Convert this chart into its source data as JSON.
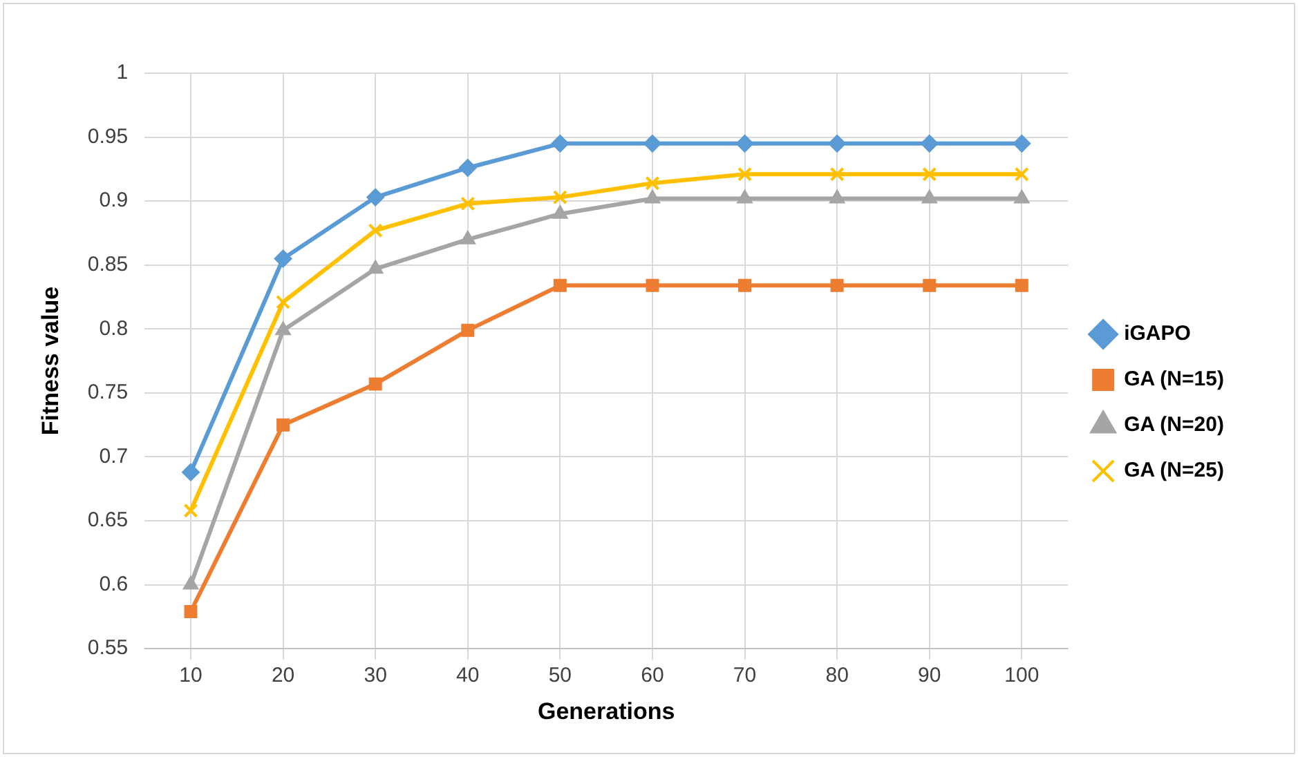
{
  "chart_data": {
    "type": "line",
    "xlabel": "Generations",
    "ylabel": "Fitness value",
    "categories": [
      "10",
      "20",
      "30",
      "40",
      "50",
      "60",
      "70",
      "80",
      "90",
      "100"
    ],
    "series": [
      {
        "name": "iGAPO",
        "color": "#5b9bd5",
        "marker": "diamond",
        "values": [
          0.688,
          0.855,
          0.903,
          0.926,
          0.945,
          0.945,
          0.945,
          0.945,
          0.945,
          0.945
        ]
      },
      {
        "name": "GA (N=15)",
        "color": "#ed7d31",
        "marker": "square",
        "values": [
          0.579,
          0.725,
          0.757,
          0.799,
          0.834,
          0.834,
          0.834,
          0.834,
          0.834,
          0.834
        ]
      },
      {
        "name": "GA (N=20)",
        "color": "#a5a5a5",
        "marker": "triangle",
        "values": [
          0.6,
          0.799,
          0.847,
          0.87,
          0.89,
          0.902,
          0.902,
          0.902,
          0.902,
          0.902
        ]
      },
      {
        "name": "GA (N=25)",
        "color": "#ffc000",
        "marker": "cross",
        "values": [
          0.658,
          0.821,
          0.877,
          0.898,
          0.903,
          0.914,
          0.921,
          0.921,
          0.921,
          0.921
        ]
      }
    ],
    "ylim": [
      0.55,
      1
    ],
    "yticks": [
      0.55,
      0.6,
      0.65,
      0.7,
      0.75,
      0.8,
      0.85,
      0.9,
      0.95,
      1
    ],
    "grid": true,
    "legend": "right"
  }
}
